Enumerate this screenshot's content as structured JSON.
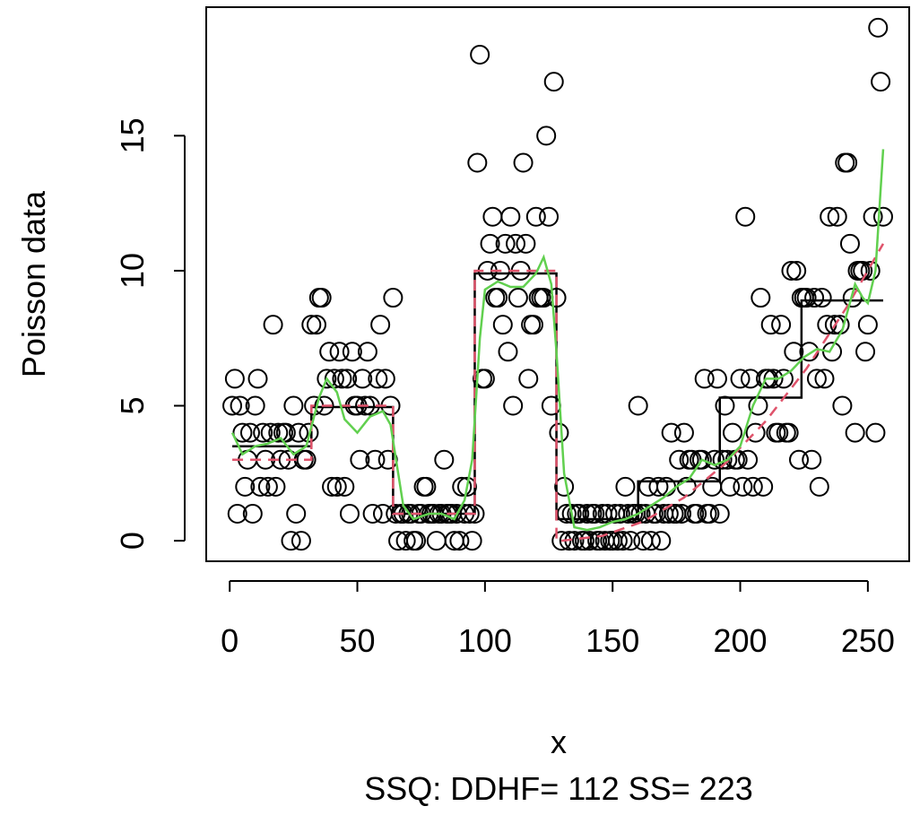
{
  "chart_data": {
    "type": "scatter",
    "xlabel": "x",
    "ylabel": "Poisson data",
    "subtitle": "SSQ: DDHF= 112  SS= 223",
    "color": "#000000",
    "xlim": [
      -9.2,
      266.2
    ],
    "ylim": [
      -0.76,
      19.76
    ],
    "xticks": [
      0,
      50,
      100,
      150,
      200,
      250
    ],
    "yticks": [
      0,
      5,
      10,
      15
    ],
    "x": [
      1,
      2,
      3,
      4,
      5,
      6,
      7,
      8,
      9,
      10,
      11,
      12,
      13,
      14,
      15,
      16,
      17,
      18,
      19,
      20,
      21,
      22,
      23,
      24,
      25,
      26,
      27,
      28,
      29,
      30,
      31,
      32,
      33,
      34,
      35,
      36,
      37,
      38,
      39,
      40,
      41,
      42,
      43,
      44,
      45,
      46,
      47,
      48,
      49,
      50,
      51,
      52,
      53,
      54,
      55,
      56,
      57,
      58,
      59,
      60,
      61,
      62,
      63,
      64,
      65,
      66,
      67,
      68,
      69,
      70,
      71,
      72,
      73,
      74,
      75,
      76,
      77,
      78,
      79,
      80,
      81,
      82,
      83,
      84,
      85,
      86,
      87,
      88,
      89,
      90,
      91,
      92,
      93,
      94,
      95,
      96,
      97,
      98,
      99,
      100,
      101,
      102,
      103,
      104,
      105,
      106,
      107,
      108,
      109,
      110,
      111,
      112,
      113,
      114,
      115,
      116,
      117,
      118,
      119,
      120,
      121,
      122,
      123,
      124,
      125,
      126,
      127,
      128,
      129,
      130,
      131,
      132,
      133,
      134,
      135,
      136,
      137,
      138,
      139,
      140,
      141,
      142,
      143,
      144,
      145,
      146,
      147,
      148,
      149,
      150,
      151,
      152,
      153,
      154,
      155,
      156,
      157,
      158,
      159,
      160,
      161,
      162,
      163,
      164,
      165,
      166,
      167,
      168,
      169,
      170,
      171,
      172,
      173,
      174,
      175,
      176,
      177,
      178,
      179,
      180,
      181,
      182,
      183,
      184,
      185,
      186,
      187,
      188,
      189,
      190,
      191,
      192,
      193,
      194,
      195,
      196,
      197,
      198,
      199,
      200,
      201,
      202,
      203,
      204,
      205,
      206,
      207,
      208,
      209,
      210,
      211,
      212,
      213,
      214,
      215,
      216,
      217,
      218,
      219,
      220,
      221,
      222,
      223,
      224,
      225,
      226,
      227,
      228,
      229,
      230,
      231,
      232,
      233,
      234,
      235,
      236,
      237,
      238,
      239,
      240,
      241,
      242,
      243,
      244,
      245,
      246,
      247,
      248,
      249,
      250,
      251,
      252,
      253,
      254,
      255,
      256
    ],
    "values": [
      5,
      6,
      1,
      5,
      4,
      2,
      3,
      4,
      1,
      5,
      6,
      2,
      4,
      3,
      2,
      4,
      8,
      2,
      4,
      3,
      4,
      4,
      3,
      0,
      5,
      1,
      4,
      0,
      3,
      3,
      4,
      8,
      5,
      8,
      9,
      9,
      5,
      6,
      7,
      2,
      6,
      2,
      7,
      6,
      2,
      6,
      1,
      7,
      5,
      5,
      3,
      6,
      5,
      7,
      5,
      1,
      3,
      6,
      8,
      1,
      6,
      3,
      5,
      9,
      1,
      0,
      1,
      1,
      0,
      1,
      1,
      0,
      0,
      1,
      1,
      2,
      2,
      1,
      1,
      1,
      0,
      1,
      1,
      3,
      1,
      1,
      1,
      0,
      1,
      0,
      2,
      1,
      2,
      1,
      0,
      1,
      14,
      18,
      6,
      6,
      10,
      11,
      12,
      9,
      9,
      10,
      8,
      11,
      7,
      12,
      5,
      11,
      9,
      10,
      14,
      11,
      6,
      8,
      8,
      12,
      9,
      9,
      9,
      15,
      12,
      5,
      17,
      9,
      4,
      0,
      2,
      1,
      0,
      1,
      0,
      1,
      1,
      0,
      0,
      1,
      0,
      1,
      1,
      0,
      0,
      1,
      0,
      1,
      0,
      0,
      1,
      0,
      1,
      0,
      2,
      1,
      0,
      1,
      1,
      5,
      1,
      0,
      1,
      2,
      0,
      1,
      1,
      2,
      0,
      1,
      2,
      1,
      4,
      1,
      1,
      3,
      1,
      4,
      2,
      3,
      3,
      1,
      1,
      3,
      3,
      6,
      1,
      1,
      2,
      3,
      6,
      1,
      3,
      5,
      3,
      2,
      4,
      3,
      3,
      6,
      2,
      12,
      3,
      6,
      2,
      4,
      5,
      9,
      2,
      6,
      6,
      8,
      6,
      4,
      4,
      8,
      6,
      4,
      4,
      10,
      7,
      10,
      3,
      9,
      9,
      9,
      7,
      3,
      9,
      6,
      2,
      9,
      6,
      8,
      12,
      7,
      8,
      12,
      8,
      5,
      14,
      14,
      11,
      9,
      4,
      10,
      10,
      10,
      7,
      8,
      10,
      12,
      4,
      19,
      17,
      12
    ],
    "lines": [
      {
        "color": "#000000",
        "dash": false,
        "x": [
          1,
          32,
          32,
          64,
          64,
          96,
          96,
          128,
          128,
          160,
          160,
          192,
          192,
          224,
          224,
          256
        ],
        "values": [
          3.5,
          3.5,
          4.95,
          4.95,
          1.0,
          1.0,
          9.9,
          9.9,
          0.8,
          0.8,
          2.2,
          2.2,
          5.3,
          5.3,
          8.9,
          8.9
        ]
      },
      {
        "color": "#df536b",
        "dash": true,
        "x": [
          1,
          32,
          32,
          64,
          64,
          96,
          96,
          128,
          128,
          130,
          146,
          162,
          178,
          194,
          210,
          226,
          242,
          256
        ],
        "values": [
          3,
          3,
          5,
          5,
          1,
          1,
          10,
          10,
          0,
          0,
          0.18,
          0.71,
          1.6,
          2.85,
          4.43,
          6.38,
          8.69,
          11
        ]
      },
      {
        "color": "#61d04f",
        "dash": false,
        "x": [
          1,
          5,
          10,
          15,
          20,
          25,
          30,
          35,
          38,
          42,
          45,
          50,
          55,
          60,
          63,
          66,
          68,
          72,
          78,
          83,
          88,
          92,
          95,
          98,
          100,
          105,
          110,
          115,
          120,
          123,
          126,
          128,
          131,
          135,
          140,
          145,
          150,
          155,
          160,
          165,
          170,
          175,
          180,
          185,
          190,
          195,
          200,
          205,
          210,
          215,
          220,
          225,
          230,
          235,
          240,
          245,
          248,
          250,
          253,
          256
        ],
        "values": [
          4,
          3.2,
          3.5,
          3.6,
          3.8,
          3.2,
          3.5,
          5.3,
          6.0,
          5.5,
          4.5,
          4.0,
          4.6,
          4.8,
          4.3,
          2.5,
          1.3,
          0.8,
          1.0,
          1.0,
          0.8,
          1.5,
          3.0,
          7.5,
          9.3,
          9.6,
          9.4,
          9.4,
          9.9,
          10.5,
          9.5,
          7,
          2.5,
          0.5,
          0.4,
          0.5,
          0.7,
          0.8,
          1.0,
          1.3,
          1.6,
          2.0,
          2.3,
          3.0,
          2.8,
          3.0,
          3.5,
          5.0,
          6.0,
          6.0,
          6.3,
          6.8,
          7.1,
          7.0,
          7.8,
          9.5,
          9.0,
          8.8,
          10.0,
          14.5
        ]
      }
    ]
  }
}
